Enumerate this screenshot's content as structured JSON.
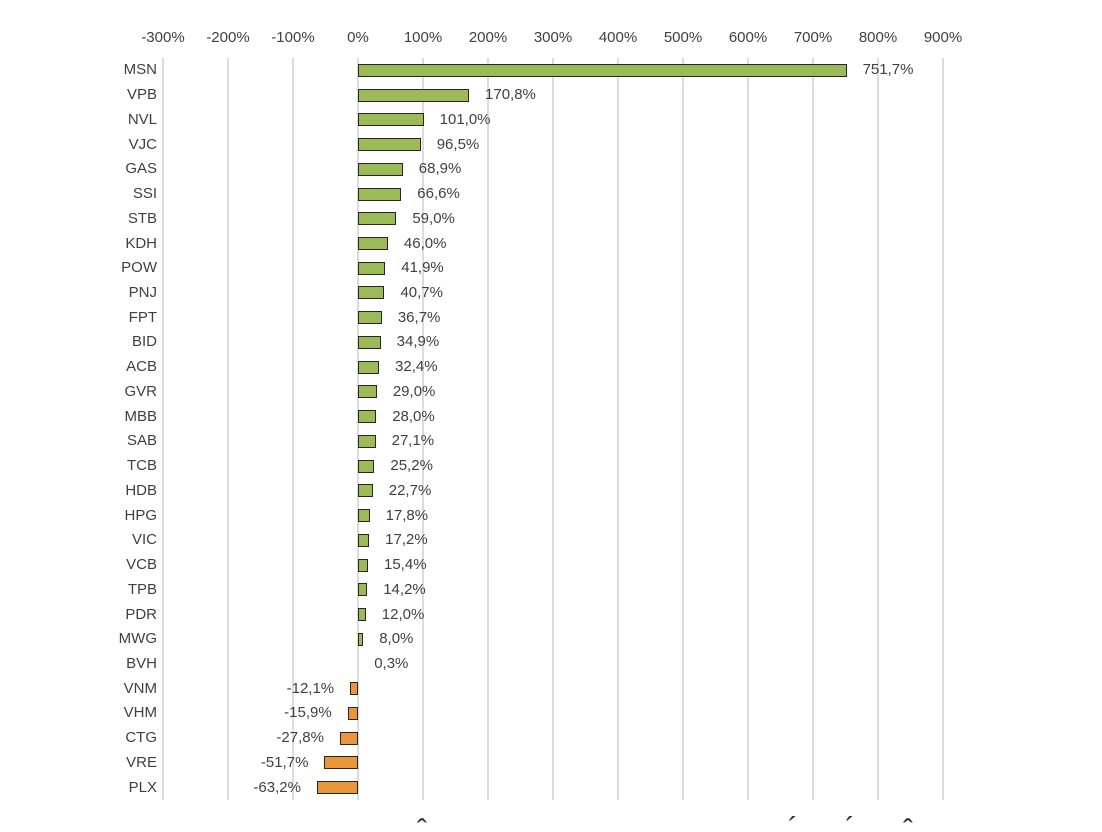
{
  "chart_data": {
    "type": "bar",
    "orientation": "horizontal",
    "title": "",
    "legend": false,
    "grid": true,
    "x_axis": {
      "position": "top",
      "min": -300,
      "max": 900,
      "tick_step": 100,
      "unit": "%",
      "tick_values": [
        -300,
        -200,
        -100,
        0,
        100,
        200,
        300,
        400,
        500,
        600,
        700,
        800,
        900
      ],
      "tick_labels": [
        "-300%",
        "-200%",
        "-100%",
        "0%",
        "100%",
        "200%",
        "300%",
        "400%",
        "500%",
        "600%",
        "700%",
        "800%",
        "900%"
      ]
    },
    "categories": [
      "MSN",
      "VPB",
      "NVL",
      "VJC",
      "GAS",
      "SSI",
      "STB",
      "KDH",
      "POW",
      "PNJ",
      "FPT",
      "BID",
      "ACB",
      "GVR",
      "MBB",
      "SAB",
      "TCB",
      "HDB",
      "HPG",
      "VIC",
      "VCB",
      "TPB",
      "PDR",
      "MWG",
      "BVH",
      "VNM",
      "VHM",
      "CTG",
      "VRE",
      "PLX"
    ],
    "values": [
      751.7,
      170.8,
      101.0,
      96.5,
      68.9,
      66.6,
      59.0,
      46.0,
      41.9,
      40.7,
      36.7,
      34.9,
      32.4,
      29.0,
      28.0,
      27.1,
      25.2,
      22.7,
      17.8,
      17.2,
      15.4,
      14.2,
      12.0,
      8.0,
      0.3,
      -12.1,
      -15.9,
      -27.8,
      -51.7,
      -63.2
    ],
    "value_labels": [
      "751,7%",
      "170,8%",
      "101,0%",
      "96,5%",
      "68,9%",
      "66,6%",
      "59,0%",
      "46,0%",
      "41,9%",
      "40,7%",
      "36,7%",
      "34,9%",
      "32,4%",
      "29,0%",
      "28,0%",
      "27,1%",
      "25,2%",
      "22,7%",
      "17,8%",
      "17,2%",
      "15,4%",
      "14,2%",
      "12,0%",
      "8,0%",
      "0,3%",
      "-12,1%",
      "-15,9%",
      "-27,8%",
      "-51,7%",
      "-63,2%"
    ],
    "colors": {
      "positive_bar": "#9BBB59",
      "negative_bar": "#E8963C",
      "bar_border": "#262626",
      "gridline": "#DCDCDC",
      "text": "#404040",
      "background": "#FFFFFF"
    }
  },
  "footer": {
    "clipped_caption_fragments": [
      "ˆ",
      "´",
      "´",
      "ˆ"
    ]
  }
}
